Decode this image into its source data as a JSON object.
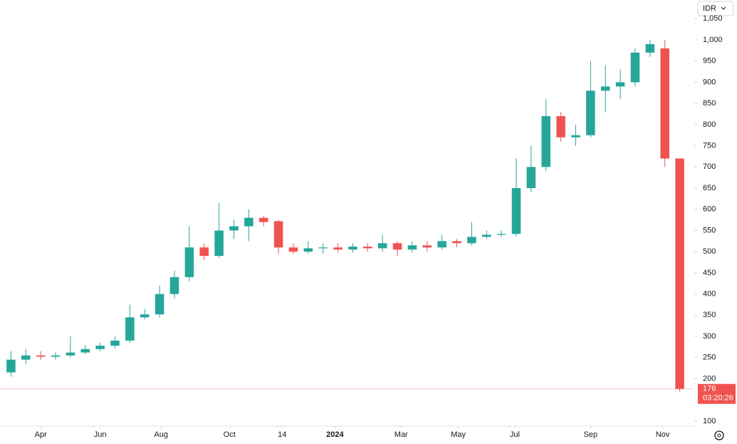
{
  "chart_data": {
    "type": "candlestick",
    "currency": "IDR",
    "countdown": "03:20:26",
    "up_color": "#26a69a",
    "down_color": "#ef5350",
    "x": [
      0,
      2,
      4,
      6,
      8,
      10,
      12,
      14,
      16,
      18,
      20,
      22,
      24,
      26,
      28,
      30,
      32,
      34,
      36,
      38,
      40,
      42,
      44,
      46,
      48,
      50,
      52,
      54,
      56,
      58,
      60,
      62,
      64,
      66,
      68,
      70,
      72,
      74,
      76,
      78,
      80,
      82,
      84,
      86,
      88,
      90
    ],
    "ohlc": [
      [
        215,
        265,
        205,
        245
      ],
      [
        245,
        270,
        235,
        255
      ],
      [
        255,
        265,
        245,
        252
      ],
      [
        252,
        262,
        245,
        255
      ],
      [
        255,
        300,
        250,
        262
      ],
      [
        262,
        280,
        258,
        270
      ],
      [
        270,
        285,
        265,
        278
      ],
      [
        278,
        300,
        272,
        290
      ],
      [
        290,
        375,
        285,
        345
      ],
      [
        345,
        365,
        340,
        352
      ],
      [
        352,
        420,
        345,
        400
      ],
      [
        400,
        455,
        390,
        440
      ],
      [
        440,
        560,
        430,
        510
      ],
      [
        510,
        520,
        480,
        490
      ],
      [
        490,
        615,
        485,
        550
      ],
      [
        550,
        575,
        530,
        560
      ],
      [
        560,
        600,
        525,
        580
      ],
      [
        580,
        585,
        560,
        570
      ],
      [
        572,
        575,
        495,
        510
      ],
      [
        510,
        520,
        495,
        500
      ],
      [
        500,
        525,
        495,
        508
      ],
      [
        508,
        520,
        495,
        510
      ],
      [
        510,
        520,
        498,
        505
      ],
      [
        505,
        520,
        498,
        512
      ],
      [
        512,
        520,
        500,
        508
      ],
      [
        508,
        540,
        500,
        520
      ],
      [
        520,
        525,
        490,
        505
      ],
      [
        505,
        525,
        498,
        515
      ],
      [
        515,
        525,
        500,
        510
      ],
      [
        510,
        540,
        505,
        525
      ],
      [
        525,
        530,
        510,
        520
      ],
      [
        520,
        570,
        515,
        535
      ],
      [
        535,
        550,
        530,
        540
      ],
      [
        540,
        550,
        535,
        542
      ],
      [
        542,
        720,
        535,
        650
      ],
      [
        650,
        750,
        640,
        700
      ],
      [
        700,
        860,
        690,
        820
      ],
      [
        820,
        830,
        760,
        770
      ],
      [
        770,
        800,
        750,
        775
      ],
      [
        775,
        950,
        770,
        880
      ],
      [
        880,
        940,
        830,
        890
      ],
      [
        890,
        930,
        860,
        900
      ],
      [
        900,
        980,
        890,
        970
      ],
      [
        970,
        1000,
        960,
        990
      ],
      [
        980,
        1000,
        700,
        720
      ],
      [
        720,
        720,
        170,
        176
      ]
    ],
    "xlim": [
      -1,
      91
    ],
    "xticks": [
      {
        "value": 4.0,
        "label": "Apr"
      },
      {
        "value": 12.0,
        "label": "Jun"
      },
      {
        "value": 20.2,
        "label": "Aug"
      },
      {
        "value": 29.4,
        "label": "Oct"
      },
      {
        "value": 36.5,
        "label": "14"
      },
      {
        "value": 43.6,
        "label": "2024"
      },
      {
        "value": 52.5,
        "label": "Mar"
      },
      {
        "value": 60.2,
        "label": "May"
      },
      {
        "value": 67.8,
        "label": "Jul"
      },
      {
        "value": 78.0,
        "label": "Sep"
      },
      {
        "value": 87.7,
        "label": "Nov"
      }
    ],
    "ylim": [
      88,
      1050
    ],
    "yticks": [
      100,
      150,
      200,
      250,
      300,
      350,
      400,
      450,
      500,
      550,
      600,
      650,
      700,
      750,
      800,
      850,
      900,
      950,
      {
        "value": 1000,
        "label": "1,000"
      },
      {
        "value": 1050,
        "label": "1,050"
      }
    ]
  }
}
